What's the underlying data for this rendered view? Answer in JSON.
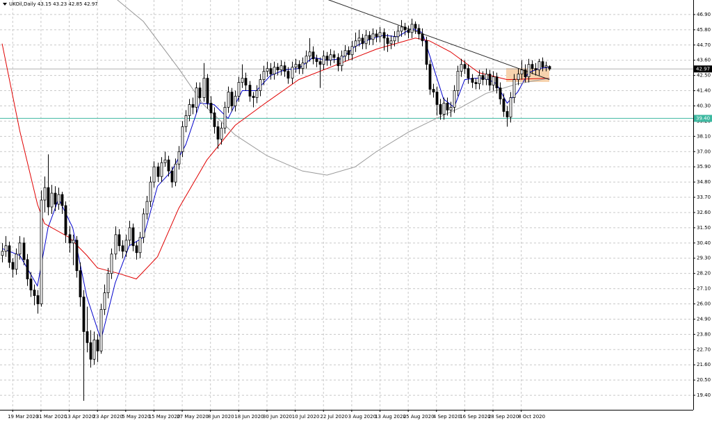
{
  "chart_data": {
    "type": "candlestick",
    "title": "UKOil,Daily  43.15 43.23 42.85 42.97",
    "up_color": "#ffffff",
    "down_color": "#000000",
    "grid": true,
    "xlim": [
      -0.6,
      195.7
    ],
    "ylim": [
      18.35,
      47.95
    ],
    "xticks": [
      {
        "value": 3,
        "label": "19 Mar 2020"
      },
      {
        "value": 11,
        "label": "31 Mar 2020"
      },
      {
        "value": 19,
        "label": "13 Apr 2020"
      },
      {
        "value": 27,
        "label": "23 Apr 2020"
      },
      {
        "value": 35,
        "label": "5 May 2020"
      },
      {
        "value": 43,
        "label": "15 May 2020"
      },
      {
        "value": 51,
        "label": "27 May 2020"
      },
      {
        "value": 59,
        "label": "8 Jun 2020"
      },
      {
        "value": 67,
        "label": "18 Jun 2020"
      },
      {
        "value": 75,
        "label": "30 Jun 2020"
      },
      {
        "value": 83,
        "label": "10 Jul 2020"
      },
      {
        "value": 91,
        "label": "22 Jul 2020"
      },
      {
        "value": 99,
        "label": "3 Aug 2020"
      },
      {
        "value": 107,
        "label": "13 Aug 2020"
      },
      {
        "value": 115,
        "label": "25 Aug 2020"
      },
      {
        "value": 123,
        "label": "4 Sep 2020"
      },
      {
        "value": 131,
        "label": "16 Sep 2020"
      },
      {
        "value": 139,
        "label": "28 Sep 2020"
      },
      {
        "value": 147,
        "label": "8 Oct 2020"
      }
    ],
    "yticks": [
      {
        "value": 19.4,
        "label": "19.40"
      },
      {
        "value": 20.5,
        "label": "20.50"
      },
      {
        "value": 21.6,
        "label": "21.60"
      },
      {
        "value": 22.7,
        "label": "22.70"
      },
      {
        "value": 23.8,
        "label": "23.80"
      },
      {
        "value": 24.9,
        "label": "24.90"
      },
      {
        "value": 26,
        "label": "26.00"
      },
      {
        "value": 27.1,
        "label": "27.10"
      },
      {
        "value": 28.2,
        "label": "28.20"
      },
      {
        "value": 29.3,
        "label": "29.30"
      },
      {
        "value": 30.4,
        "label": "30.40"
      },
      {
        "value": 31.5,
        "label": "31.50"
      },
      {
        "value": 32.6,
        "label": "32.60"
      },
      {
        "value": 33.7,
        "label": "33.70"
      },
      {
        "value": 34.8,
        "label": "34.80"
      },
      {
        "value": 35.9,
        "label": "35.90"
      },
      {
        "value": 37,
        "label": "37.00"
      },
      {
        "value": 38.1,
        "label": "38.10"
      },
      {
        "value": 39.2,
        "label": "39.20"
      },
      {
        "value": 40.3,
        "label": "40.30"
      },
      {
        "value": 41.4,
        "label": "41.40"
      },
      {
        "value": 42.5,
        "label": "42.50"
      },
      {
        "value": 43.6,
        "label": "43.60"
      },
      {
        "value": 44.7,
        "label": "44.70"
      },
      {
        "value": 45.8,
        "label": "45.80"
      },
      {
        "value": 46.9,
        "label": "46.90"
      }
    ],
    "last_price": 42.97,
    "level": {
      "value": 39.4,
      "label": "39.40",
      "color": "#3cb8a0"
    },
    "candles": [
      [
        29.5,
        30.4,
        29.0,
        29.8
      ],
      [
        29.8,
        30.9,
        29.4,
        30.2
      ],
      [
        30.2,
        30.5,
        28.6,
        29.0
      ],
      [
        29.0,
        29.3,
        27.9,
        28.5
      ],
      [
        28.5,
        30.0,
        28.1,
        29.6
      ],
      [
        29.6,
        30.9,
        29.2,
        30.4
      ],
      [
        30.4,
        30.8,
        28.8,
        29.2
      ],
      [
        29.2,
        29.6,
        27.3,
        27.8
      ],
      [
        27.8,
        28.3,
        26.5,
        27.0
      ],
      [
        27.0,
        27.4,
        25.9,
        26.6
      ],
      [
        26.6,
        27.0,
        25.3,
        26.0
      ],
      [
        26.0,
        34.2,
        25.8,
        33.5
      ],
      [
        33.5,
        35.2,
        32.6,
        34.4
      ],
      [
        34.4,
        36.8,
        32.4,
        33.0
      ],
      [
        33.0,
        34.6,
        32.5,
        34.0
      ],
      [
        34.0,
        34.5,
        32.7,
        33.2
      ],
      [
        33.2,
        34.4,
        32.8,
        33.9
      ],
      [
        33.9,
        34.1,
        32.5,
        33.1
      ],
      [
        33.1,
        33.4,
        30.4,
        31.0
      ],
      [
        31.0,
        31.6,
        29.7,
        30.4
      ],
      [
        30.4,
        31.0,
        28.8,
        30.6
      ],
      [
        30.6,
        30.9,
        27.9,
        28.4
      ],
      [
        28.4,
        29.0,
        25.8,
        26.5
      ],
      [
        26.5,
        27.0,
        19.0,
        24.0
      ],
      [
        24.0,
        25.8,
        22.5,
        23.2
      ],
      [
        23.2,
        24.1,
        21.4,
        22.0
      ],
      [
        22.0,
        24.0,
        21.6,
        23.4
      ],
      [
        23.4,
        23.8,
        21.8,
        22.6
      ],
      [
        22.6,
        26.0,
        22.4,
        25.6
      ],
      [
        25.6,
        27.4,
        25.2,
        26.8
      ],
      [
        26.8,
        28.6,
        26.4,
        28.2
      ],
      [
        28.2,
        30.0,
        27.8,
        29.6
      ],
      [
        29.6,
        31.6,
        29.2,
        31.0
      ],
      [
        31.0,
        31.4,
        29.8,
        30.2
      ],
      [
        30.2,
        30.6,
        29.3,
        29.8
      ],
      [
        29.8,
        31.0,
        29.4,
        30.6
      ],
      [
        30.6,
        32.0,
        30.2,
        31.5
      ],
      [
        31.5,
        31.8,
        29.8,
        30.2
      ],
      [
        30.2,
        30.5,
        29.2,
        29.7
      ],
      [
        29.7,
        31.2,
        29.3,
        30.8
      ],
      [
        30.8,
        32.9,
        30.4,
        32.5
      ],
      [
        32.5,
        33.8,
        32.1,
        33.4
      ],
      [
        33.4,
        35.2,
        33.0,
        34.8
      ],
      [
        34.8,
        36.3,
        34.4,
        35.9
      ],
      [
        35.9,
        36.2,
        34.8,
        35.2
      ],
      [
        35.2,
        36.6,
        34.8,
        36.2
      ],
      [
        36.2,
        37.0,
        35.9,
        36.4
      ],
      [
        36.4,
        36.7,
        35.2,
        35.6
      ],
      [
        35.6,
        35.9,
        34.4,
        34.8
      ],
      [
        34.8,
        36.5,
        34.5,
        36.1
      ],
      [
        36.1,
        37.4,
        35.7,
        37.0
      ],
      [
        37.0,
        39.2,
        36.6,
        38.8
      ],
      [
        38.8,
        40.0,
        38.4,
        39.6
      ],
      [
        39.6,
        40.8,
        39.2,
        40.4
      ],
      [
        40.4,
        40.9,
        39.7,
        40.2
      ],
      [
        40.2,
        42.0,
        39.8,
        41.6
      ],
      [
        41.6,
        42.0,
        40.5,
        40.9
      ],
      [
        40.9,
        43.4,
        40.6,
        42.3
      ],
      [
        42.3,
        42.6,
        40.1,
        40.5
      ],
      [
        40.5,
        41.0,
        39.3,
        39.8
      ],
      [
        39.8,
        40.2,
        38.3,
        38.8
      ],
      [
        38.8,
        39.2,
        37.2,
        37.9
      ],
      [
        37.9,
        39.1,
        37.5,
        38.7
      ],
      [
        38.7,
        40.6,
        38.3,
        40.2
      ],
      [
        40.2,
        41.7,
        39.8,
        41.3
      ],
      [
        41.3,
        41.6,
        39.9,
        40.3
      ],
      [
        40.3,
        41.4,
        39.9,
        41.0
      ],
      [
        41.0,
        42.4,
        40.6,
        42.0
      ],
      [
        42.0,
        43.3,
        41.6,
        42.3
      ],
      [
        42.3,
        42.7,
        41.4,
        41.8
      ],
      [
        41.8,
        42.1,
        40.6,
        41.0
      ],
      [
        41.0,
        41.3,
        40.2,
        40.9
      ],
      [
        40.9,
        41.8,
        40.5,
        41.4
      ],
      [
        41.4,
        42.6,
        41.0,
        42.2
      ],
      [
        42.2,
        43.2,
        41.8,
        42.8
      ],
      [
        42.8,
        43.5,
        42.4,
        43.0
      ],
      [
        43.0,
        43.4,
        42.2,
        42.6
      ],
      [
        42.6,
        43.5,
        42.2,
        43.1
      ],
      [
        43.1,
        43.4,
        42.5,
        42.9
      ],
      [
        42.9,
        43.6,
        42.5,
        43.2
      ],
      [
        43.2,
        43.5,
        42.4,
        42.8
      ],
      [
        42.8,
        43.1,
        41.9,
        42.3
      ],
      [
        42.3,
        43.5,
        41.9,
        43.1
      ],
      [
        43.1,
        43.7,
        42.7,
        43.3
      ],
      [
        43.3,
        43.6,
        42.6,
        43.0
      ],
      [
        43.0,
        43.8,
        42.6,
        43.4
      ],
      [
        43.4,
        44.3,
        43.0,
        43.9
      ],
      [
        43.9,
        45.2,
        43.5,
        44.2
      ],
      [
        44.2,
        44.6,
        43.3,
        43.7
      ],
      [
        43.7,
        44.0,
        43.1,
        43.5
      ],
      [
        43.5,
        43.8,
        41.6,
        43.3
      ],
      [
        43.3,
        44.3,
        42.9,
        43.9
      ],
      [
        43.9,
        44.2,
        43.2,
        43.6
      ],
      [
        43.6,
        44.4,
        43.2,
        44.0
      ],
      [
        44.0,
        44.3,
        43.4,
        43.8
      ],
      [
        43.8,
        44.1,
        42.8,
        43.2
      ],
      [
        43.2,
        44.3,
        42.8,
        43.9
      ],
      [
        43.9,
        44.7,
        43.5,
        44.3
      ],
      [
        44.3,
        44.6,
        43.6,
        44.0
      ],
      [
        44.0,
        45.0,
        43.6,
        44.6
      ],
      [
        44.6,
        45.6,
        44.2,
        45.0
      ],
      [
        45.0,
        45.8,
        44.6,
        45.2
      ],
      [
        45.2,
        45.5,
        44.4,
        44.8
      ],
      [
        44.8,
        45.8,
        44.4,
        45.4
      ],
      [
        45.4,
        45.7,
        44.7,
        45.1
      ],
      [
        45.1,
        45.9,
        44.7,
        45.5
      ],
      [
        45.5,
        45.8,
        44.9,
        45.3
      ],
      [
        45.3,
        46.0,
        44.9,
        45.6
      ],
      [
        45.6,
        45.9,
        44.3,
        45.2
      ],
      [
        45.2,
        45.5,
        44.2,
        44.8
      ],
      [
        44.8,
        45.4,
        44.4,
        45.0
      ],
      [
        45.0,
        45.7,
        44.6,
        45.3
      ],
      [
        45.3,
        46.1,
        44.9,
        45.7
      ],
      [
        45.7,
        46.5,
        45.3,
        46.0
      ],
      [
        46.0,
        46.3,
        45.4,
        45.8
      ],
      [
        45.8,
        46.1,
        45.2,
        45.6
      ],
      [
        45.6,
        46.6,
        45.2,
        46.2
      ],
      [
        46.2,
        46.4,
        45.5,
        45.9
      ],
      [
        45.9,
        46.2,
        45.1,
        45.5
      ],
      [
        45.5,
        45.9,
        44.6,
        45.0
      ],
      [
        45.0,
        45.3,
        42.9,
        43.3
      ],
      [
        43.3,
        43.6,
        41.1,
        41.5
      ],
      [
        41.5,
        41.9,
        40.9,
        41.3
      ],
      [
        41.3,
        41.7,
        39.6,
        40.4
      ],
      [
        40.4,
        40.8,
        39.3,
        39.7
      ],
      [
        39.7,
        40.9,
        39.3,
        40.5
      ],
      [
        40.5,
        40.9,
        39.6,
        40.0
      ],
      [
        40.0,
        40.6,
        39.5,
        40.2
      ],
      [
        40.2,
        41.8,
        39.8,
        41.4
      ],
      [
        41.4,
        43.2,
        41.0,
        42.8
      ],
      [
        42.8,
        43.7,
        42.4,
        43.3
      ],
      [
        43.3,
        43.6,
        42.6,
        43.0
      ],
      [
        43.0,
        43.3,
        41.9,
        42.3
      ],
      [
        42.3,
        42.6,
        41.6,
        42.0
      ],
      [
        42.0,
        42.3,
        41.5,
        41.9
      ],
      [
        41.9,
        42.9,
        41.5,
        42.5
      ],
      [
        42.5,
        42.8,
        41.8,
        42.2
      ],
      [
        42.2,
        43.0,
        41.8,
        42.6
      ],
      [
        42.6,
        42.9,
        41.4,
        41.8
      ],
      [
        41.8,
        42.8,
        41.4,
        42.4
      ],
      [
        42.4,
        42.7,
        41.2,
        41.6
      ],
      [
        41.6,
        42.0,
        40.4,
        40.8
      ],
      [
        40.8,
        41.2,
        39.5,
        39.9
      ],
      [
        39.9,
        40.3,
        38.8,
        39.5
      ],
      [
        39.5,
        41.3,
        39.1,
        40.9
      ],
      [
        40.9,
        42.6,
        40.5,
        42.2
      ],
      [
        42.2,
        43.0,
        41.8,
        42.6
      ],
      [
        42.6,
        43.6,
        42.2,
        42.9
      ],
      [
        42.9,
        43.3,
        42.0,
        42.4
      ],
      [
        42.4,
        43.7,
        42.0,
        43.3
      ],
      [
        43.3,
        43.6,
        42.6,
        43.0
      ],
      [
        43.0,
        43.4,
        42.5,
        42.9
      ],
      [
        42.9,
        43.7,
        42.5,
        43.5
      ],
      [
        43.5,
        43.8,
        42.8,
        43.1
      ],
      [
        43.1,
        43.5,
        42.8,
        43.2
      ],
      [
        43.15,
        43.23,
        42.85,
        42.97
      ]
    ],
    "lines": [
      {
        "color": "#0000cc",
        "x": [
          0,
          5,
          10,
          13,
          16,
          20,
          24,
          28,
          32,
          36,
          40,
          44,
          48,
          52,
          56,
          60,
          64,
          68,
          72,
          76,
          80,
          84,
          88,
          92,
          96,
          100,
          104,
          108,
          112,
          116,
          119,
          122,
          125,
          128,
          131,
          134,
          137,
          140,
          143,
          146,
          149,
          152,
          155
        ],
        "values": [
          30.0,
          29.5,
          27.3,
          31.5,
          33.6,
          31.5,
          26.5,
          23.4,
          27.5,
          30.2,
          30.8,
          34.5,
          35.6,
          37.5,
          40.5,
          40.4,
          39.4,
          41.4,
          41.4,
          42.5,
          42.9,
          43.0,
          43.8,
          43.6,
          43.7,
          44.6,
          45.1,
          45.4,
          45.3,
          45.9,
          45.6,
          43.2,
          40.8,
          40.2,
          42.2,
          42.3,
          42.3,
          41.9,
          40.5,
          41.3,
          42.7,
          43.0,
          43.1
        ]
      },
      {
        "color": "#e00000",
        "x": [
          0,
          5,
          10,
          12,
          19,
          24,
          27,
          33,
          38,
          44,
          50,
          58,
          66,
          74,
          84,
          94,
          106,
          117,
          121,
          127,
          135,
          143,
          155
        ],
        "values": [
          44.8,
          38.5,
          33.2,
          31.8,
          30.8,
          29.5,
          28.6,
          28.2,
          27.8,
          29.4,
          32.9,
          36.4,
          38.9,
          40.4,
          42.2,
          43.2,
          44.4,
          45.2,
          45.0,
          44.2,
          42.7,
          42.2,
          42.3
        ]
      },
      {
        "color": "#999999",
        "x": [
          31,
          40,
          50,
          57,
          66,
          75,
          85,
          92,
          100,
          106,
          115,
          123,
          130,
          137,
          146,
          155
        ],
        "values": [
          48.3,
          46.4,
          43.0,
          40.4,
          38.2,
          36.7,
          35.6,
          35.3,
          35.9,
          37.0,
          38.4,
          39.4,
          40.2,
          41.2,
          41.9,
          42.3
        ]
      },
      {
        "color": "#222222",
        "x": [
          92,
          155
        ],
        "values": [
          48.0,
          42.2
        ]
      }
    ]
  }
}
